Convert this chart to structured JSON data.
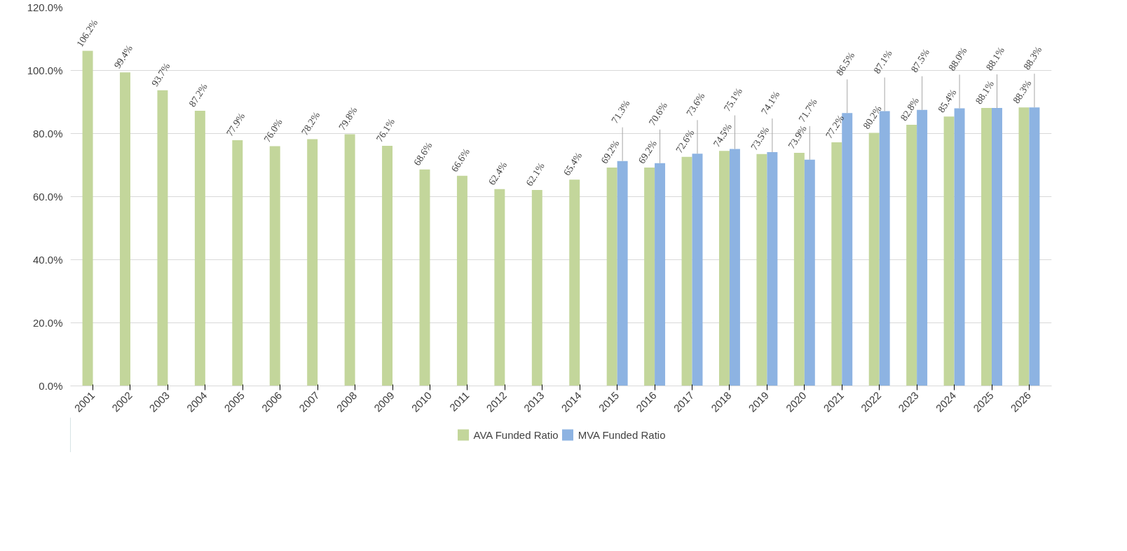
{
  "chart_data": {
    "type": "bar",
    "categories": [
      "2001",
      "2002",
      "2003",
      "2004",
      "2005",
      "2006",
      "2007",
      "2008",
      "2009",
      "2010",
      "2011",
      "2012",
      "2013",
      "2014",
      "2015",
      "2016",
      "2017",
      "2018",
      "2019",
      "2020",
      "2021",
      "2022",
      "2023",
      "2024",
      "2025",
      "2026"
    ],
    "series": [
      {
        "name": "AVA Funded Ratio",
        "color": "#c3d69b",
        "values": [
          106.2,
          99.4,
          93.7,
          87.2,
          77.9,
          76.0,
          78.2,
          79.8,
          76.1,
          68.6,
          66.6,
          62.4,
          62.1,
          65.4,
          69.2,
          69.2,
          72.6,
          74.5,
          73.5,
          73.9,
          77.2,
          80.2,
          82.8,
          85.4,
          88.1,
          88.3
        ],
        "value_labels": [
          "106.2%",
          "99.4%",
          "93.7%",
          "87.2%",
          "77.9%",
          "76.0%",
          "78.2%",
          "79.8%",
          "76.1%",
          "68.6%",
          "66.6%",
          "62.4%",
          "62.1%",
          "65.4%",
          "69.2%",
          "69.2%",
          "72.6%",
          "74.5%",
          "73.5%",
          "73.9%",
          "77.2%",
          "80.2%",
          "82.8%",
          "85.4%",
          "88.1%",
          "88.3%"
        ]
      },
      {
        "name": "MVA Funded Ratio",
        "color": "#8db3e2",
        "values": [
          null,
          null,
          null,
          null,
          null,
          null,
          null,
          null,
          null,
          null,
          null,
          null,
          null,
          null,
          71.3,
          70.6,
          73.6,
          75.1,
          74.1,
          71.7,
          86.5,
          87.1,
          87.5,
          88.0,
          88.1,
          88.3
        ],
        "value_labels": [
          null,
          null,
          null,
          null,
          null,
          null,
          null,
          null,
          null,
          null,
          null,
          null,
          null,
          null,
          "71.3%",
          "70.6%",
          "73.6%",
          "75.1%",
          "74.1%",
          "71.7%",
          "86.5%",
          "87.1%",
          "87.5%",
          "88.0%",
          "88.1%",
          "88.3%"
        ]
      }
    ],
    "ylim": [
      0,
      120
    ],
    "yticks": [
      {
        "value": 0,
        "label": "0.0%"
      },
      {
        "value": 20,
        "label": "20.0%"
      },
      {
        "value": 40,
        "label": "40.0%"
      },
      {
        "value": 60,
        "label": "60.0%"
      },
      {
        "value": 80,
        "label": "80.0%"
      },
      {
        "value": 100,
        "label": "100.0%"
      },
      {
        "value": 120,
        "label": "120.0%"
      }
    ],
    "grid": "y",
    "legend": "bottom"
  }
}
